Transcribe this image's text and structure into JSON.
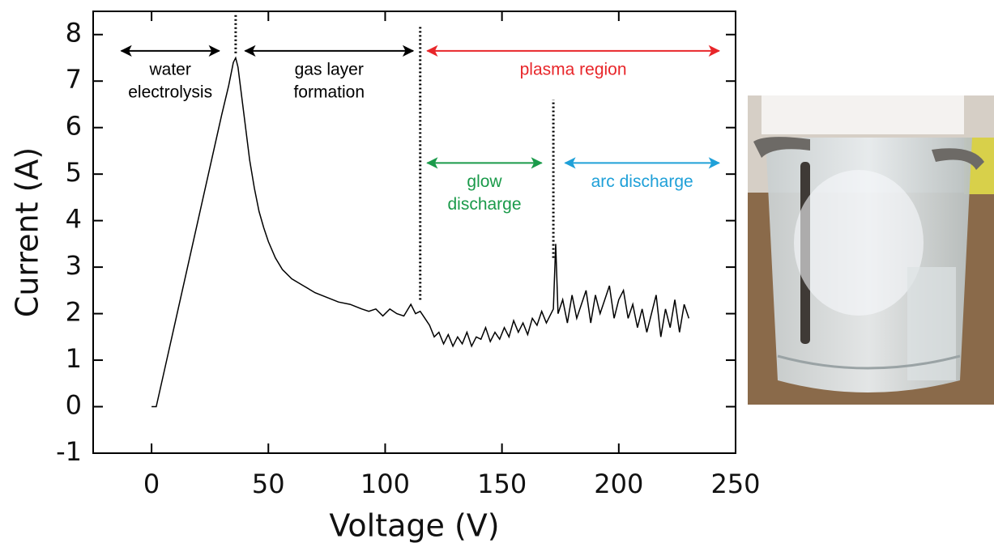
{
  "chart_data": {
    "type": "line",
    "x_label": "Voltage (V)",
    "y_label": "Current (A)",
    "xlim": [
      -25,
      250
    ],
    "ylim": [
      -1,
      8.5
    ],
    "xticks": [
      0,
      50,
      100,
      150,
      200,
      250
    ],
    "yticks": [
      -1,
      0,
      1,
      2,
      3,
      4,
      5,
      6,
      7,
      8
    ],
    "color": "#000000",
    "x": [
      0,
      2,
      5,
      10,
      15,
      20,
      25,
      30,
      33,
      35,
      36,
      37,
      38,
      40,
      42,
      44,
      46,
      48,
      50,
      53,
      56,
      60,
      65,
      70,
      75,
      80,
      85,
      90,
      93,
      96,
      99,
      102,
      105,
      108,
      111,
      113,
      115,
      117,
      119,
      121,
      123,
      125,
      127,
      129,
      131,
      133,
      135,
      137,
      139,
      141,
      143,
      145,
      147,
      149,
      151,
      153,
      155,
      157,
      159,
      161,
      163,
      165,
      167,
      169,
      171,
      172,
      173,
      174,
      176,
      178,
      180,
      182,
      184,
      186,
      188,
      190,
      192,
      194,
      196,
      198,
      200,
      202,
      204,
      206,
      208,
      210,
      212,
      214,
      216,
      218,
      220,
      222,
      224,
      226,
      228,
      230
    ],
    "y": [
      0,
      0,
      0.67,
      1.79,
      2.91,
      4.03,
      5.15,
      6.27,
      6.9,
      7.4,
      7.5,
      7.3,
      6.9,
      6.1,
      5.3,
      4.7,
      4.2,
      3.85,
      3.55,
      3.2,
      2.95,
      2.75,
      2.6,
      2.45,
      2.35,
      2.25,
      2.2,
      2.1,
      2.05,
      2.1,
      1.95,
      2.1,
      2.0,
      1.95,
      2.2,
      2.0,
      2.05,
      1.9,
      1.75,
      1.5,
      1.6,
      1.35,
      1.55,
      1.3,
      1.5,
      1.35,
      1.6,
      1.3,
      1.5,
      1.45,
      1.7,
      1.4,
      1.6,
      1.45,
      1.7,
      1.5,
      1.85,
      1.6,
      1.8,
      1.55,
      1.9,
      1.75,
      2.05,
      1.8,
      2.0,
      2.1,
      3.5,
      2.0,
      2.3,
      1.8,
      2.4,
      1.9,
      2.2,
      2.5,
      1.8,
      2.4,
      2.0,
      2.3,
      2.6,
      1.9,
      2.3,
      2.5,
      1.9,
      2.2,
      1.7,
      2.1,
      1.6,
      2.0,
      2.4,
      1.5,
      2.1,
      1.7,
      2.3,
      1.6,
      2.2,
      1.9
    ],
    "regions": [
      {
        "label": [
          "water",
          "electrolysis"
        ],
        "from": -13,
        "to": 29,
        "y": 7.65,
        "color": "#000000"
      },
      {
        "label": [
          "gas layer",
          "formation"
        ],
        "from": 40,
        "to": 112,
        "y": 7.65,
        "color": "#000000"
      },
      {
        "label": [
          "plasma region"
        ],
        "from": 118,
        "to": 243,
        "y": 7.65,
        "color": "#e8262a"
      },
      {
        "label": [
          "glow",
          "discharge"
        ],
        "from": 118,
        "to": 167,
        "y": 5.24,
        "color": "#1a9a4a"
      },
      {
        "label": [
          "arc discharge"
        ],
        "from": 177,
        "to": 243,
        "y": 5.24,
        "color": "#1fa0d8"
      }
    ],
    "dividers": [
      {
        "x": 36,
        "from": 7.6,
        "to": 8.45
      },
      {
        "x": 115,
        "from": 2.3,
        "to": 8.2
      },
      {
        "x": 172,
        "from": 3.2,
        "to": 6.6
      }
    ]
  }
}
